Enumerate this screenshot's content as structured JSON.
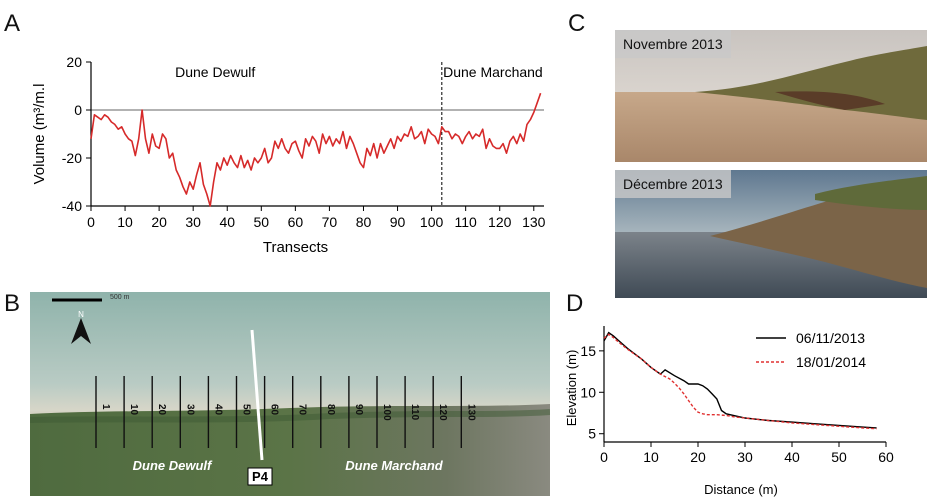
{
  "panels": {
    "a": "A",
    "b": "B",
    "c": "C",
    "d": "D"
  },
  "chart_data": [
    {
      "type": "line",
      "panel": "A",
      "xlabel": "Transects",
      "ylabel": "Volume (m³/m.l",
      "xlim": [
        0,
        133
      ],
      "ylim": [
        -40,
        20
      ],
      "xticks": [
        0,
        10,
        20,
        30,
        40,
        50,
        60,
        70,
        80,
        90,
        100,
        110,
        120,
        130
      ],
      "yticks": [
        -40,
        -20,
        0,
        20
      ],
      "annotations": [
        "Dune Dewulf",
        "Dune Marchand"
      ],
      "divider_x": 103,
      "series": [
        {
          "color": "#d62a2a",
          "x": [
            0,
            1,
            2,
            3,
            4,
            5,
            6,
            7,
            8,
            9,
            10,
            11,
            12,
            13,
            14,
            15,
            16,
            17,
            18,
            19,
            20,
            21,
            22,
            23,
            24,
            25,
            26,
            27,
            28,
            29,
            30,
            31,
            32,
            33,
            34,
            35,
            36,
            37,
            38,
            39,
            40,
            41,
            42,
            43,
            44,
            45,
            46,
            47,
            48,
            49,
            50,
            51,
            52,
            53,
            54,
            55,
            56,
            57,
            58,
            59,
            60,
            61,
            62,
            63,
            64,
            65,
            66,
            67,
            68,
            69,
            70,
            71,
            72,
            73,
            74,
            75,
            76,
            77,
            78,
            79,
            80,
            81,
            82,
            83,
            84,
            85,
            86,
            87,
            88,
            89,
            90,
            91,
            92,
            93,
            94,
            95,
            96,
            97,
            98,
            99,
            100,
            101,
            102,
            103,
            104,
            105,
            106,
            107,
            108,
            109,
            110,
            111,
            112,
            113,
            114,
            115,
            116,
            117,
            118,
            119,
            120,
            121,
            122,
            123,
            124,
            125,
            126,
            127,
            128,
            129,
            130,
            131,
            132
          ],
          "y": [
            -12,
            -2,
            -3,
            -4,
            -2,
            -3,
            -5,
            -6,
            -8,
            -7,
            -10,
            -12,
            -13,
            -19,
            -12,
            0,
            -12,
            -18,
            -10,
            -15,
            -16,
            -10,
            -12,
            -20,
            -18,
            -25,
            -28,
            -32,
            -35,
            -30,
            -33,
            -27,
            -22,
            -31,
            -35,
            -40,
            -30,
            -22,
            -25,
            -20,
            -23,
            -19,
            -22,
            -24,
            -19,
            -24,
            -21,
            -25,
            -20,
            -22,
            -20,
            -16,
            -22,
            -20,
            -13,
            -16,
            -12,
            -16,
            -18,
            -14,
            -13,
            -17,
            -20,
            -12,
            -15,
            -11,
            -13,
            -18,
            -10,
            -14,
            -11,
            -15,
            -12,
            -14,
            -9,
            -16,
            -11,
            -14,
            -18,
            -22,
            -24,
            -16,
            -19,
            -14,
            -20,
            -14,
            -18,
            -15,
            -12,
            -16,
            -11,
            -13,
            -10,
            -11,
            -7,
            -12,
            -11,
            -9,
            -14,
            -8,
            -10,
            -11,
            -14,
            -7,
            -9,
            -9,
            -12,
            -10,
            -11,
            -14,
            -11,
            -9,
            -12,
            -10,
            -11,
            -8,
            -16,
            -12,
            -15,
            -16,
            -16,
            -14,
            -18,
            -13,
            -11,
            -14,
            -10,
            -13,
            -6,
            -4,
            -1,
            3,
            7
          ]
        }
      ]
    },
    {
      "type": "line",
      "panel": "D",
      "xlabel": "Distance (m)",
      "ylabel": "Elevation (m)",
      "xlim": [
        0,
        60
      ],
      "ylim": [
        4,
        18
      ],
      "xticks": [
        0,
        10,
        20,
        30,
        40,
        50,
        60
      ],
      "yticks": [
        5,
        10,
        15
      ],
      "legend": "top-right",
      "series": [
        {
          "name": "06/11/2013",
          "color": "#000000",
          "dash": "solid",
          "x": [
            0,
            1,
            2,
            3,
            5,
            8,
            10,
            12,
            13,
            15,
            17,
            18,
            19,
            20,
            21,
            22,
            23,
            24,
            25,
            26,
            30,
            35,
            40,
            45,
            50,
            55,
            58
          ],
          "y": [
            16.2,
            17.2,
            16.8,
            16.3,
            15.3,
            14.0,
            13.0,
            12.2,
            12.7,
            12.0,
            11.4,
            11.0,
            11.0,
            11.0,
            10.8,
            10.4,
            9.8,
            9.2,
            7.8,
            7.4,
            6.9,
            6.6,
            6.4,
            6.2,
            6.0,
            5.8,
            5.7
          ]
        },
        {
          "name": "18/01/2014",
          "color": "#e03030",
          "dash": "dashed",
          "x": [
            0,
            1,
            2,
            3,
            5,
            8,
            10,
            12,
            14,
            15,
            16,
            17,
            18,
            19,
            20,
            21,
            22,
            24,
            26,
            28,
            30,
            35,
            40,
            45,
            50,
            55,
            58
          ],
          "y": [
            16.5,
            17.0,
            16.6,
            16.1,
            15.2,
            14.0,
            13.0,
            12.2,
            11.6,
            11.1,
            10.5,
            9.8,
            9.0,
            8.2,
            7.6,
            7.4,
            7.3,
            7.3,
            7.2,
            7.0,
            6.9,
            6.6,
            6.3,
            6.1,
            5.9,
            5.7,
            5.6
          ]
        }
      ]
    }
  ],
  "map": {
    "transect_labels": [
      "1",
      "10",
      "20",
      "30",
      "40",
      "50",
      "60",
      "70",
      "80",
      "90",
      "100",
      "110",
      "120",
      "130"
    ],
    "profile_label": "P4",
    "zone_labels": [
      "Dune Dewulf",
      "Dune Marchand"
    ],
    "north_label": "N",
    "scale_label": "500 m"
  },
  "photos": {
    "top_label": "Novembre 2013",
    "bottom_label": "Décembre 2013"
  }
}
